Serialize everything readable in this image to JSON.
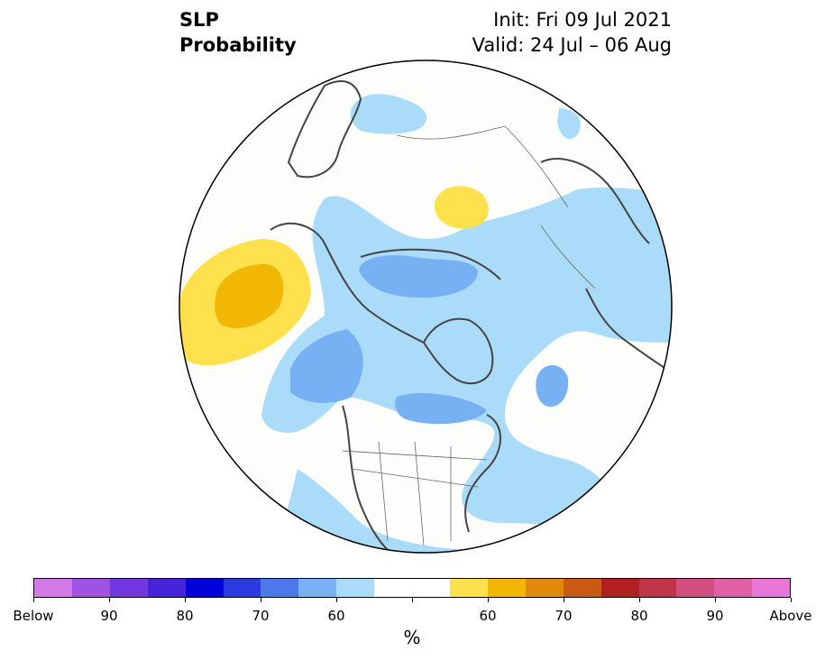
{
  "title": {
    "line1": "SLP",
    "line2": "Probability",
    "init": "Init: Fri 09 Jul 2021",
    "valid": "Valid: 24 Jul – 06 Aug"
  },
  "colorbar": {
    "colors": [
      "#d47ae8",
      "#a052e0",
      "#7038de",
      "#4622d8",
      "#0000d8",
      "#2a3ce0",
      "#4d78ea",
      "#78b0f4",
      "#aadcfa",
      "#ffffff",
      "#ffffff",
      "#ffe14d",
      "#f2b705",
      "#e08a0b",
      "#c85a14",
      "#b02020",
      "#c03448",
      "#d04e80",
      "#e060a8",
      "#e875d8"
    ],
    "labels": [
      "Below",
      "90",
      "80",
      "70",
      "60",
      "60",
      "70",
      "80",
      "90",
      "Above"
    ],
    "unit": "%"
  },
  "legend_colors": {
    "below_light": "#aadcfa",
    "below_mid": "#78b0f4",
    "above_light": "#ffe14d",
    "above_mid": "#f2b705"
  }
}
